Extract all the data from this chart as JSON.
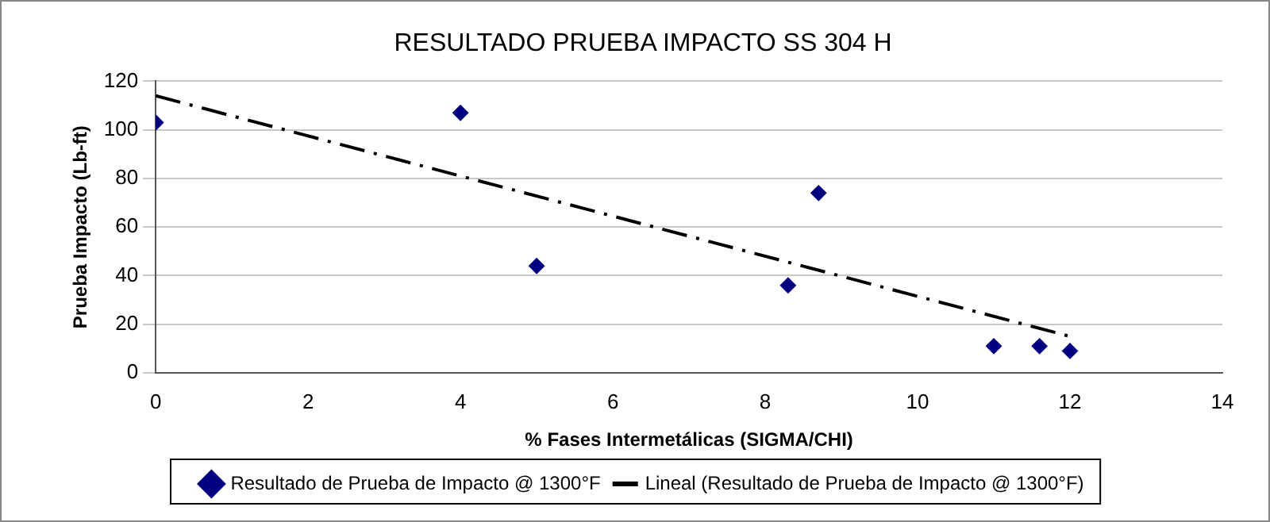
{
  "chart_data": {
    "type": "scatter",
    "title": "RESULTADO PRUEBA IMPACTO SS 304 H",
    "xlabel": "% Fases Intermetálicas (SIGMA/CHI)",
    "ylabel": "Prueba Impacto (Lb-ft)",
    "series": [
      {
        "name": "Resultado de Prueba de Impacto @ 1300°F",
        "color": "#000080",
        "x": [
          0,
          4,
          5,
          8.3,
          8.7,
          11,
          11.6,
          12
        ],
        "values": [
          103,
          107,
          44,
          36,
          74,
          11,
          11,
          9
        ],
        "marker": "diamond"
      },
      {
        "name": "Lineal (Resultado de Prueba de Impacto @ 1300°F)",
        "type": "line",
        "color": "#000000",
        "x": [
          0,
          12
        ],
        "values": [
          114,
          15
        ],
        "marker": "none",
        "line_style": "dashed"
      }
    ],
    "xlim": [
      0,
      14
    ],
    "xticks": [
      0,
      2,
      4,
      6,
      8,
      10,
      12,
      14
    ],
    "ylim": [
      0,
      120
    ],
    "yticks": [
      0,
      20,
      40,
      60,
      80,
      100,
      120
    ],
    "grid": "y",
    "legend": "bottom"
  }
}
